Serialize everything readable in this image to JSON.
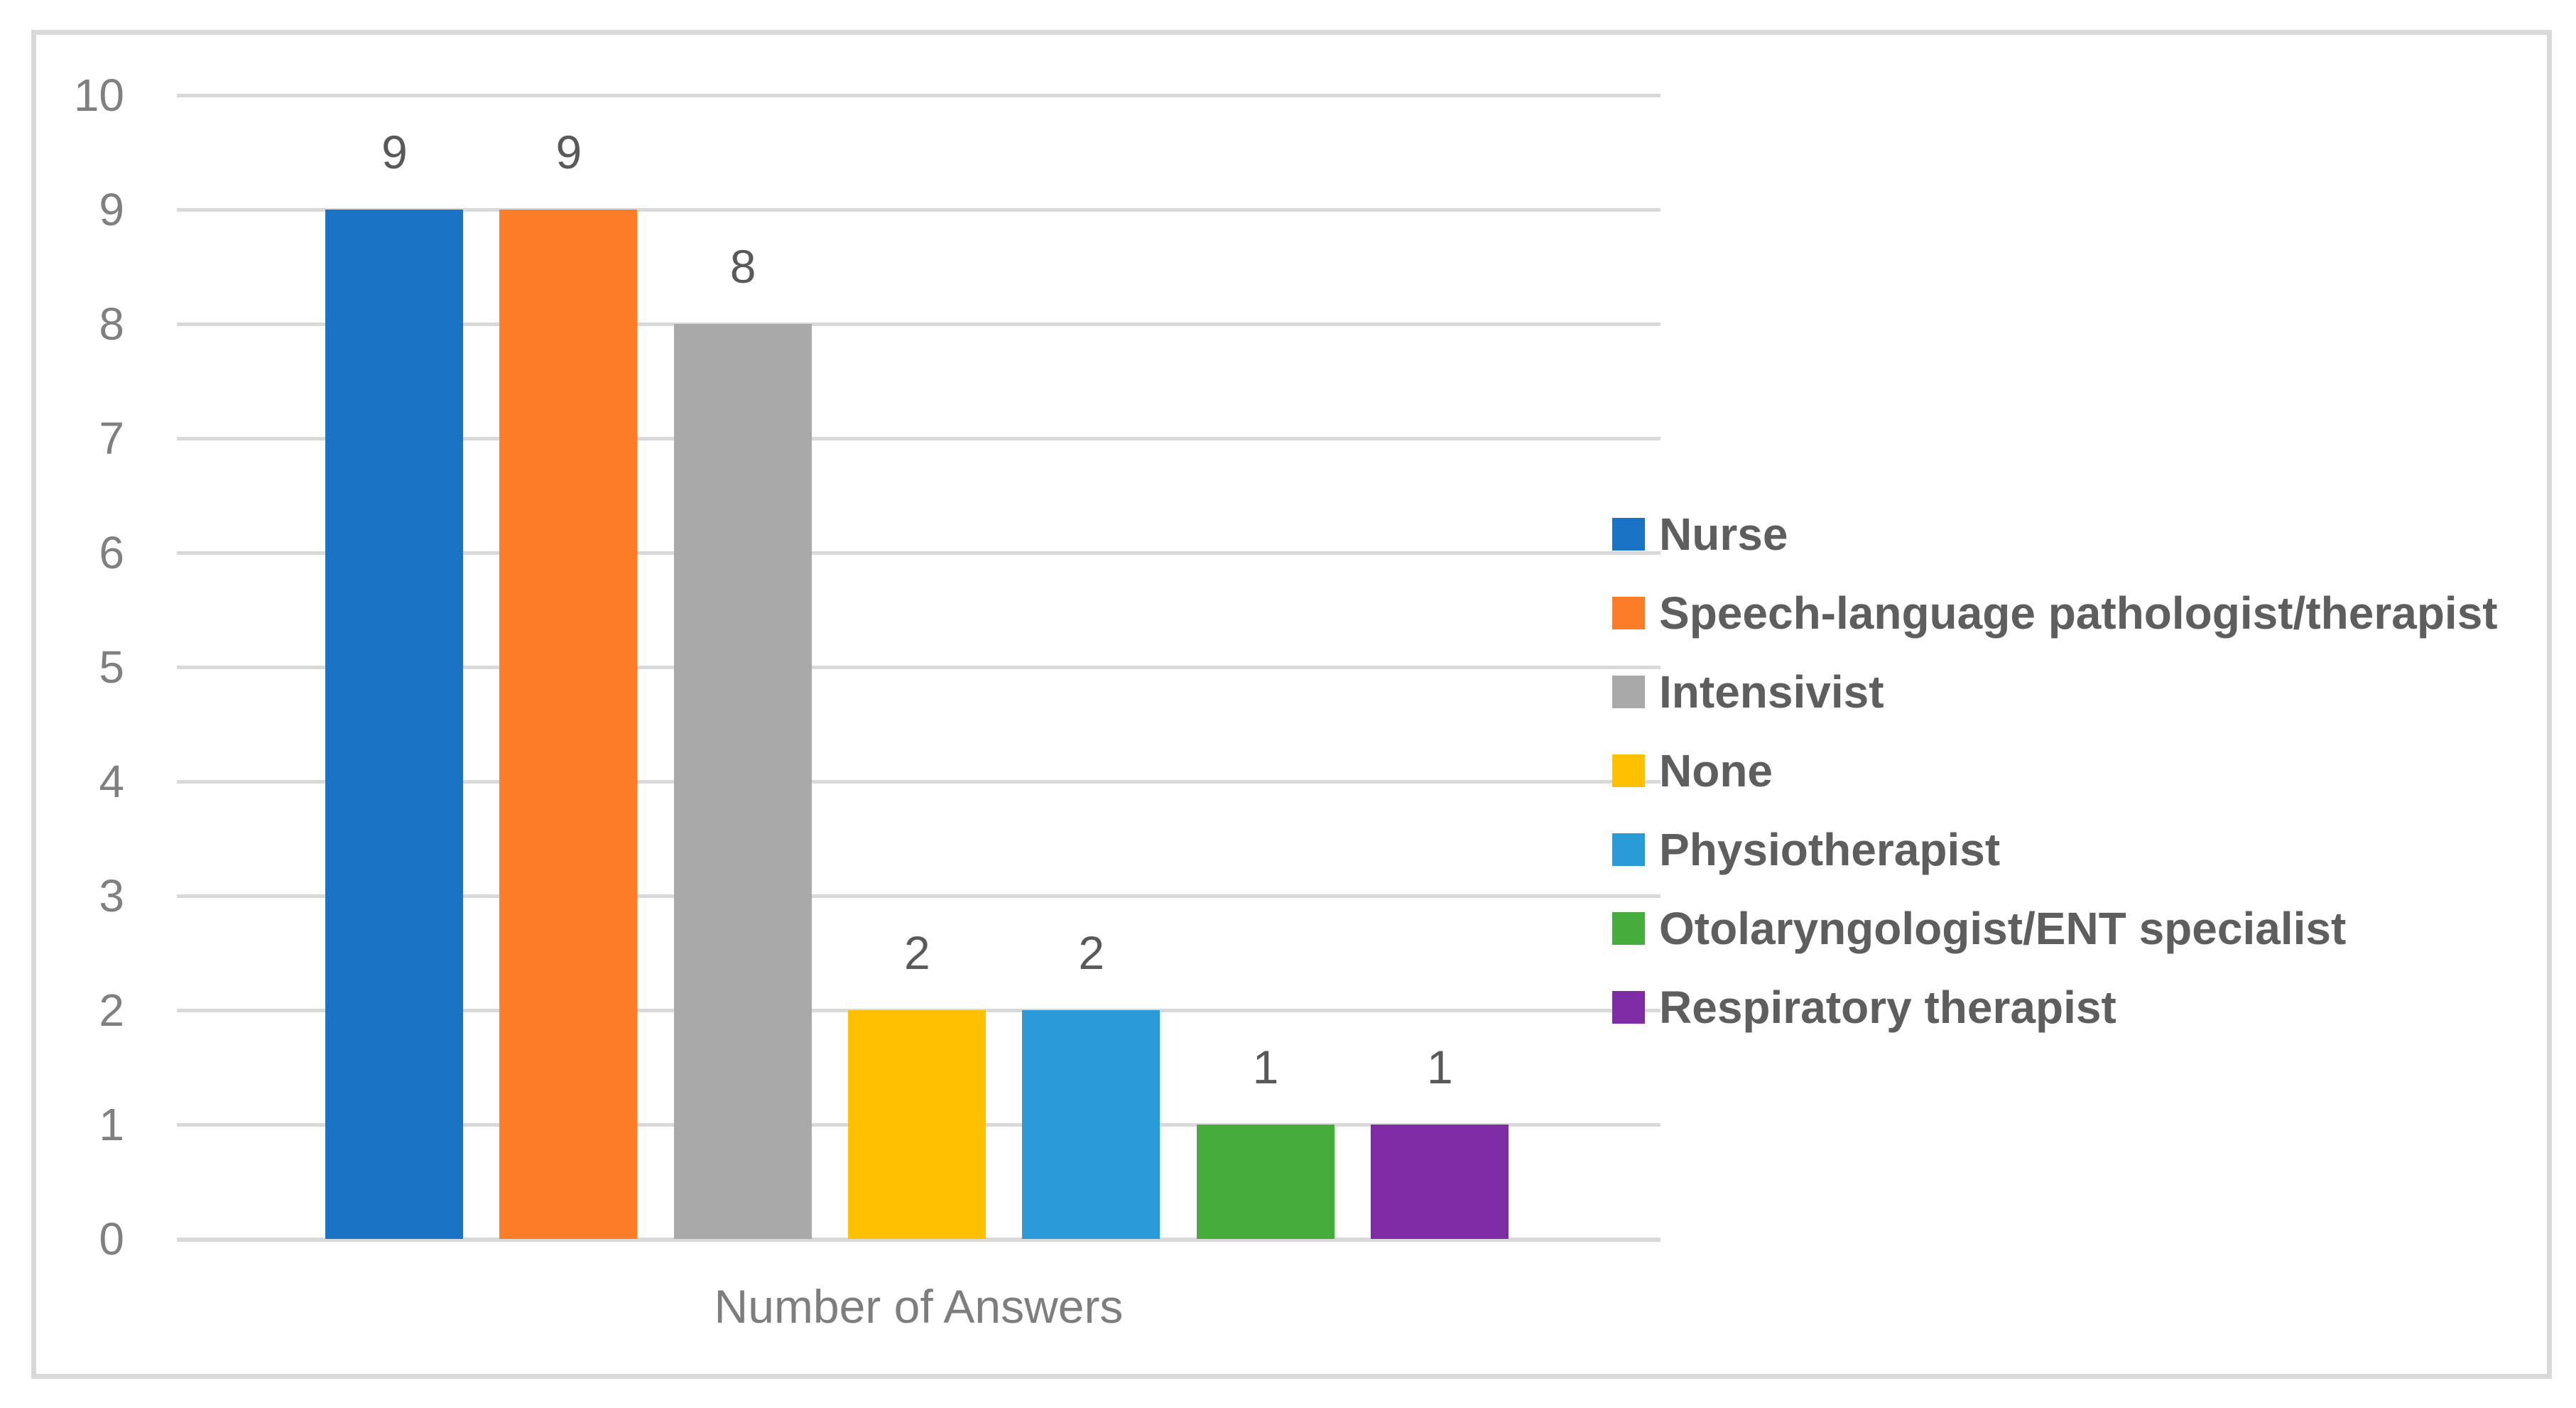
{
  "chart_data": {
    "type": "bar",
    "categories": [
      "Nurse",
      "Speech-language pathologist/therapist",
      "Intensivist",
      "None",
      "Physiotherapist",
      "Otolaryngologist/ENT specialist",
      "Respiratory therapist"
    ],
    "values": [
      9,
      9,
      8,
      2,
      2,
      1,
      1
    ],
    "data_labels": [
      "9",
      "9",
      "8",
      "2",
      "2",
      "1",
      "1"
    ],
    "colors": [
      "#1B73C5",
      "#FB7D27",
      "#A9A9A9",
      "#FFC000",
      "#299CD8",
      "#46AC3C",
      "#7D2CA5"
    ],
    "title": "",
    "xlabel": "Number of Answers",
    "ylabel": "",
    "ylim": [
      0,
      10
    ],
    "ytick_interval": 1,
    "ytick_labels": [
      "0",
      "1",
      "2",
      "3",
      "4",
      "5",
      "6",
      "7",
      "8",
      "9",
      "10"
    ],
    "grid": true,
    "legend_position": "right",
    "legend_entries": [
      {
        "label": "Nurse",
        "color": "#1B73C5"
      },
      {
        "label": "Speech-language pathologist/therapist",
        "color": "#FB7D27"
      },
      {
        "label": "Intensivist",
        "color": "#A9A9A9"
      },
      {
        "label": "None",
        "color": "#FFC000"
      },
      {
        "label": "Physiotherapist",
        "color": "#299CD8"
      },
      {
        "label": "Otolaryngologist/ENT specialist",
        "color": "#46AC3C"
      },
      {
        "label": "Respiratory therapist",
        "color": "#7D2CA5"
      }
    ],
    "style_colors": {
      "gridline": "#D9D9D9",
      "frame_border": "#D9D9D9",
      "axis_tick_text": "#808080",
      "data_label_text": "#595959",
      "legend_text": "#5E5E5E",
      "axis_title_text": "#7E7E7E",
      "background": "#FFFFFF"
    }
  },
  "axis": {
    "x_title": "Number of Answers"
  }
}
